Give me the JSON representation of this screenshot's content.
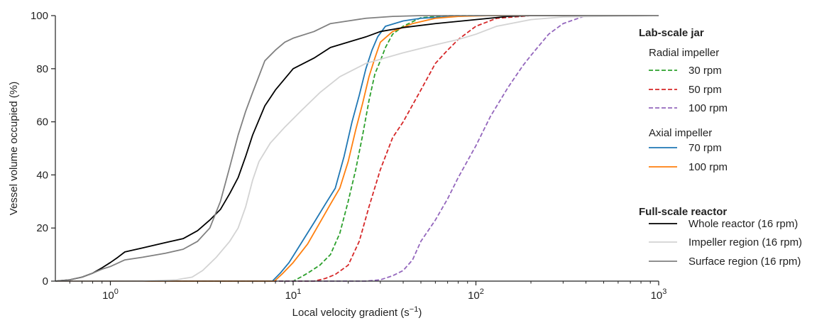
{
  "chart_data": {
    "type": "line",
    "xlabel": "Local velocity gradient (s",
    "xlabel_sup": "−1",
    "xlabel_close": ")",
    "ylabel": "Vessel volume occupied (%)",
    "xscale": "log",
    "xlim": [
      0.5,
      1000
    ],
    "ylim": [
      0,
      100
    ],
    "grid": false,
    "legend_position": "right",
    "x_ticks": [
      {
        "value": 1,
        "base": "10",
        "exp": "0"
      },
      {
        "value": 10,
        "base": "10",
        "exp": "1"
      },
      {
        "value": 100,
        "base": "10",
        "exp": "2"
      },
      {
        "value": 1000,
        "base": "10",
        "exp": "3"
      }
    ],
    "y_ticks": [
      {
        "value": 0,
        "label": "0"
      },
      {
        "value": 20,
        "label": "20"
      },
      {
        "value": 40,
        "label": "40"
      },
      {
        "value": 60,
        "label": "60"
      },
      {
        "value": 80,
        "label": "80"
      },
      {
        "value": 100,
        "label": "100"
      }
    ],
    "legend": {
      "group1_title": "Lab-scale jar",
      "group1_sub1": "Radial impeller",
      "group1_sub2": "Axial impeller",
      "group2_title": "Full-scale reactor"
    },
    "series": [
      {
        "name": "30 rpm",
        "group": "radial",
        "color": "#2ca02c",
        "dash": true,
        "points": [
          [
            0.5,
            0
          ],
          [
            10,
            0
          ],
          [
            11,
            1.5
          ],
          [
            12,
            3
          ],
          [
            14,
            6
          ],
          [
            16,
            10
          ],
          [
            18,
            18
          ],
          [
            20,
            30
          ],
          [
            22,
            42
          ],
          [
            24,
            55
          ],
          [
            26,
            68
          ],
          [
            28,
            78
          ],
          [
            30,
            83
          ],
          [
            32,
            88
          ],
          [
            35,
            93
          ],
          [
            40,
            96
          ],
          [
            50,
            99.2
          ],
          [
            70,
            100
          ],
          [
            1000,
            100
          ]
        ]
      },
      {
        "name": "50 rpm",
        "group": "radial",
        "color": "#d62728",
        "dash": true,
        "points": [
          [
            0.5,
            0
          ],
          [
            13,
            0
          ],
          [
            15,
            1
          ],
          [
            17,
            2.5
          ],
          [
            20,
            6
          ],
          [
            23,
            15
          ],
          [
            26,
            28
          ],
          [
            30,
            42
          ],
          [
            35,
            54
          ],
          [
            40,
            60
          ],
          [
            50,
            72
          ],
          [
            60,
            82
          ],
          [
            70,
            87
          ],
          [
            80,
            91
          ],
          [
            100,
            96
          ],
          [
            130,
            99
          ],
          [
            200,
            100
          ],
          [
            1000,
            100
          ]
        ]
      },
      {
        "name": "100 rpm",
        "group": "radial",
        "color": "#9467bd",
        "dash": true,
        "points": [
          [
            0.5,
            0
          ],
          [
            25,
            0
          ],
          [
            30,
            0.5
          ],
          [
            35,
            2
          ],
          [
            40,
            4
          ],
          [
            45,
            8
          ],
          [
            50,
            15
          ],
          [
            60,
            23
          ],
          [
            70,
            31
          ],
          [
            80,
            39
          ],
          [
            100,
            51
          ],
          [
            120,
            62
          ],
          [
            150,
            73
          ],
          [
            180,
            81
          ],
          [
            200,
            85
          ],
          [
            250,
            93
          ],
          [
            300,
            97
          ],
          [
            400,
            100
          ],
          [
            1000,
            100
          ]
        ]
      },
      {
        "name": "70 rpm",
        "group": "axial",
        "color": "#1f77b4",
        "dash": false,
        "points": [
          [
            0.5,
            0
          ],
          [
            7.7,
            0
          ],
          [
            8.5,
            3
          ],
          [
            9.5,
            7
          ],
          [
            11,
            14
          ],
          [
            13,
            22
          ],
          [
            15,
            29
          ],
          [
            17,
            35
          ],
          [
            19,
            47
          ],
          [
            21,
            60
          ],
          [
            23,
            70
          ],
          [
            25,
            80
          ],
          [
            27,
            87
          ],
          [
            29,
            92
          ],
          [
            32,
            96
          ],
          [
            40,
            98
          ],
          [
            50,
            99
          ],
          [
            70,
            99.6
          ],
          [
            100,
            100
          ],
          [
            1000,
            100
          ]
        ]
      },
      {
        "name": "100 rpm",
        "group": "axial",
        "color": "#ff7f0e",
        "dash": false,
        "points": [
          [
            0.5,
            0
          ],
          [
            7.9,
            0
          ],
          [
            8.8,
            3
          ],
          [
            10,
            7
          ],
          [
            12,
            14
          ],
          [
            14,
            22
          ],
          [
            16,
            29
          ],
          [
            18,
            35
          ],
          [
            20,
            45
          ],
          [
            22,
            57
          ],
          [
            24,
            67
          ],
          [
            26,
            77
          ],
          [
            28,
            84
          ],
          [
            30,
            90
          ],
          [
            35,
            94
          ],
          [
            45,
            97
          ],
          [
            60,
            99
          ],
          [
            80,
            99.7
          ],
          [
            120,
            100
          ],
          [
            1000,
            100
          ]
        ]
      },
      {
        "name": "Whole reactor (16 rpm)",
        "group": "full",
        "color": "#000000",
        "dash": false,
        "points": [
          [
            0.5,
            0
          ],
          [
            0.6,
            0.5
          ],
          [
            0.7,
            1.5
          ],
          [
            0.8,
            3
          ],
          [
            0.9,
            5
          ],
          [
            1.0,
            7
          ],
          [
            1.1,
            9
          ],
          [
            1.2,
            11
          ],
          [
            1.5,
            12.5
          ],
          [
            2.0,
            14.5
          ],
          [
            2.5,
            16
          ],
          [
            3.0,
            19
          ],
          [
            3.5,
            23
          ],
          [
            4.0,
            27
          ],
          [
            4.5,
            33
          ],
          [
            5.0,
            39
          ],
          [
            5.5,
            47
          ],
          [
            6.0,
            55
          ],
          [
            7.0,
            66
          ],
          [
            8.0,
            72
          ],
          [
            10,
            80
          ],
          [
            13,
            84
          ],
          [
            16,
            88
          ],
          [
            20,
            90
          ],
          [
            25,
            92
          ],
          [
            30,
            94
          ],
          [
            40,
            95.5
          ],
          [
            60,
            97
          ],
          [
            100,
            98.5
          ],
          [
            150,
            99.7
          ],
          [
            200,
            100
          ],
          [
            1000,
            100
          ]
        ]
      },
      {
        "name": "Impeller region (16 rpm)",
        "group": "full",
        "color": "#d3d3d3",
        "dash": false,
        "points": [
          [
            0.5,
            0
          ],
          [
            1.5,
            0
          ],
          [
            2.3,
            0.5
          ],
          [
            2.8,
            1.5
          ],
          [
            3.2,
            4
          ],
          [
            3.8,
            9
          ],
          [
            4.5,
            15
          ],
          [
            5.0,
            20
          ],
          [
            5.5,
            28
          ],
          [
            6.0,
            38
          ],
          [
            6.5,
            45
          ],
          [
            7.5,
            52
          ],
          [
            9,
            58
          ],
          [
            11,
            64
          ],
          [
            14,
            71
          ],
          [
            18,
            77
          ],
          [
            25,
            82
          ],
          [
            40,
            86
          ],
          [
            60,
            89
          ],
          [
            80,
            91
          ],
          [
            100,
            93
          ],
          [
            130,
            96
          ],
          [
            200,
            98.5
          ],
          [
            300,
            99.5
          ],
          [
            1000,
            100
          ]
        ]
      },
      {
        "name": "Surface region (16 rpm)",
        "group": "full",
        "color": "#808080",
        "dash": false,
        "points": [
          [
            0.5,
            0
          ],
          [
            0.6,
            0.5
          ],
          [
            0.7,
            1.5
          ],
          [
            0.8,
            3
          ],
          [
            0.9,
            4.5
          ],
          [
            1.0,
            5.5
          ],
          [
            1.2,
            8
          ],
          [
            1.5,
            9
          ],
          [
            2.0,
            10.5
          ],
          [
            2.5,
            12
          ],
          [
            3.0,
            15
          ],
          [
            3.5,
            20
          ],
          [
            4.0,
            30
          ],
          [
            4.5,
            43
          ],
          [
            5.0,
            55
          ],
          [
            5.5,
            64
          ],
          [
            6.0,
            71
          ],
          [
            7.0,
            83
          ],
          [
            8.0,
            87
          ],
          [
            9.0,
            90
          ],
          [
            10,
            91.5
          ],
          [
            13,
            94
          ],
          [
            16,
            97
          ],
          [
            20,
            98
          ],
          [
            25,
            99
          ],
          [
            35,
            99.7
          ],
          [
            50,
            100
          ],
          [
            1000,
            100
          ]
        ]
      }
    ]
  }
}
